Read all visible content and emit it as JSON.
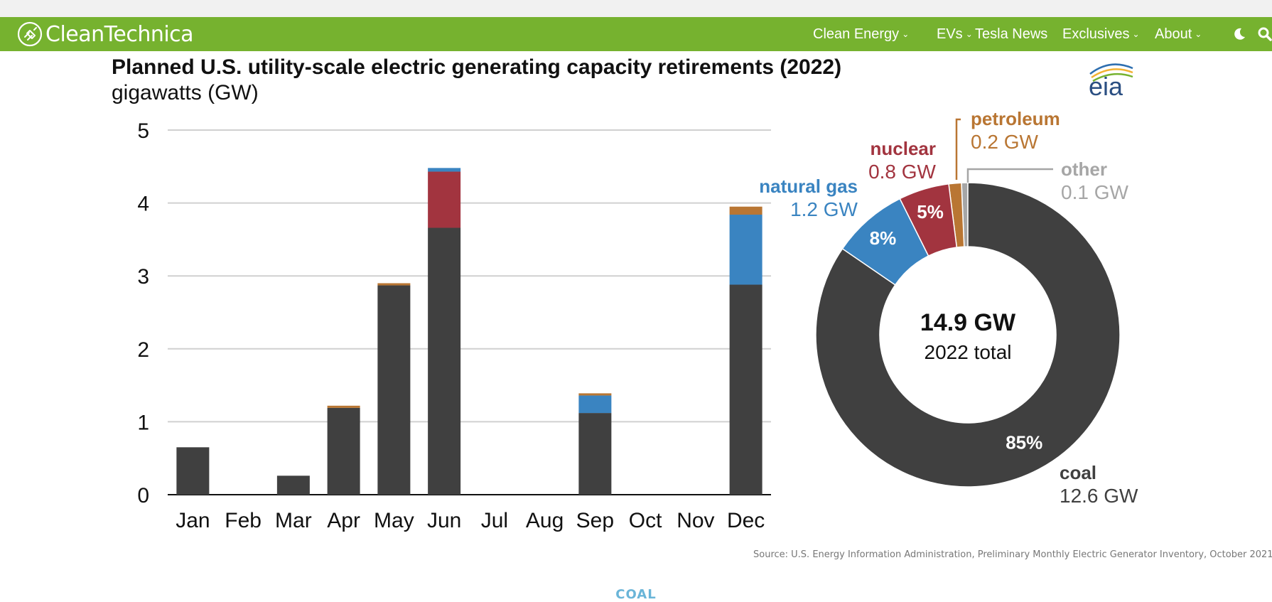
{
  "site": {
    "logo_text": "CleanTechnica",
    "nav": [
      {
        "label": "Clean Energy",
        "has_dropdown": true
      },
      {
        "label": "EVs",
        "has_dropdown": true
      },
      {
        "label": "Tesla News",
        "has_dropdown": false
      },
      {
        "label": "Exclusives",
        "has_dropdown": true
      },
      {
        "label": "About",
        "has_dropdown": true
      }
    ],
    "icons": [
      "moon-icon",
      "search-icon"
    ],
    "brand_color": "#76b22f"
  },
  "article": {
    "chart_title": "Planned U.S. utility-scale electric generating capacity retirements (2022)",
    "chart_subtitle": "gigawatts (GW)",
    "source": "Source: U.S. Energy Information Administration, Preliminary Monthly Electric Generator Inventory, October 2021",
    "eia_logo_text": "eia",
    "section_tag": "COAL"
  },
  "chart_data": [
    {
      "type": "bar",
      "stacked": true,
      "categories": [
        "Jan",
        "Feb",
        "Mar",
        "Apr",
        "May",
        "Jun",
        "Jul",
        "Aug",
        "Sep",
        "Oct",
        "Nov",
        "Dec"
      ],
      "ylim": [
        0,
        5
      ],
      "yticks": [
        0,
        1,
        2,
        3,
        4,
        5
      ],
      "grid": true,
      "series": [
        {
          "name": "coal",
          "color": "#404040",
          "values": [
            0.65,
            0,
            0.26,
            1.19,
            2.87,
            3.66,
            0,
            0,
            1.12,
            0,
            0,
            2.88
          ]
        },
        {
          "name": "nuclear",
          "color": "#a2343f",
          "values": [
            0,
            0,
            0,
            0,
            0,
            0.77,
            0,
            0,
            0,
            0,
            0,
            0
          ]
        },
        {
          "name": "natural gas",
          "color": "#3a84c1",
          "values": [
            0,
            0,
            0,
            0,
            0,
            0.05,
            0,
            0,
            0.24,
            0,
            0,
            0.96
          ]
        },
        {
          "name": "petroleum",
          "color": "#b97633",
          "values": [
            0,
            0,
            0,
            0.03,
            0.03,
            0,
            0,
            0,
            0.03,
            0,
            0,
            0.11
          ]
        }
      ]
    },
    {
      "type": "pie",
      "donut": true,
      "center_value": "14.9 GW",
      "center_label": "2022 total",
      "slices": [
        {
          "name": "coal",
          "value_label": "12.6 GW",
          "value": 12.6,
          "percent_label": "85%",
          "color": "#404040"
        },
        {
          "name": "natural gas",
          "value_label": "1.2 GW",
          "value": 1.2,
          "percent_label": "8%",
          "color": "#3a84c1"
        },
        {
          "name": "nuclear",
          "value_label": "0.8 GW",
          "value": 0.8,
          "percent_label": "5%",
          "color": "#a2343f"
        },
        {
          "name": "petroleum",
          "value_label": "0.2 GW",
          "value": 0.2,
          "percent_label": "",
          "color": "#b97633"
        },
        {
          "name": "other",
          "value_label": "0.1 GW",
          "value": 0.1,
          "percent_label": "",
          "color": "#a6a6a6"
        }
      ]
    }
  ]
}
